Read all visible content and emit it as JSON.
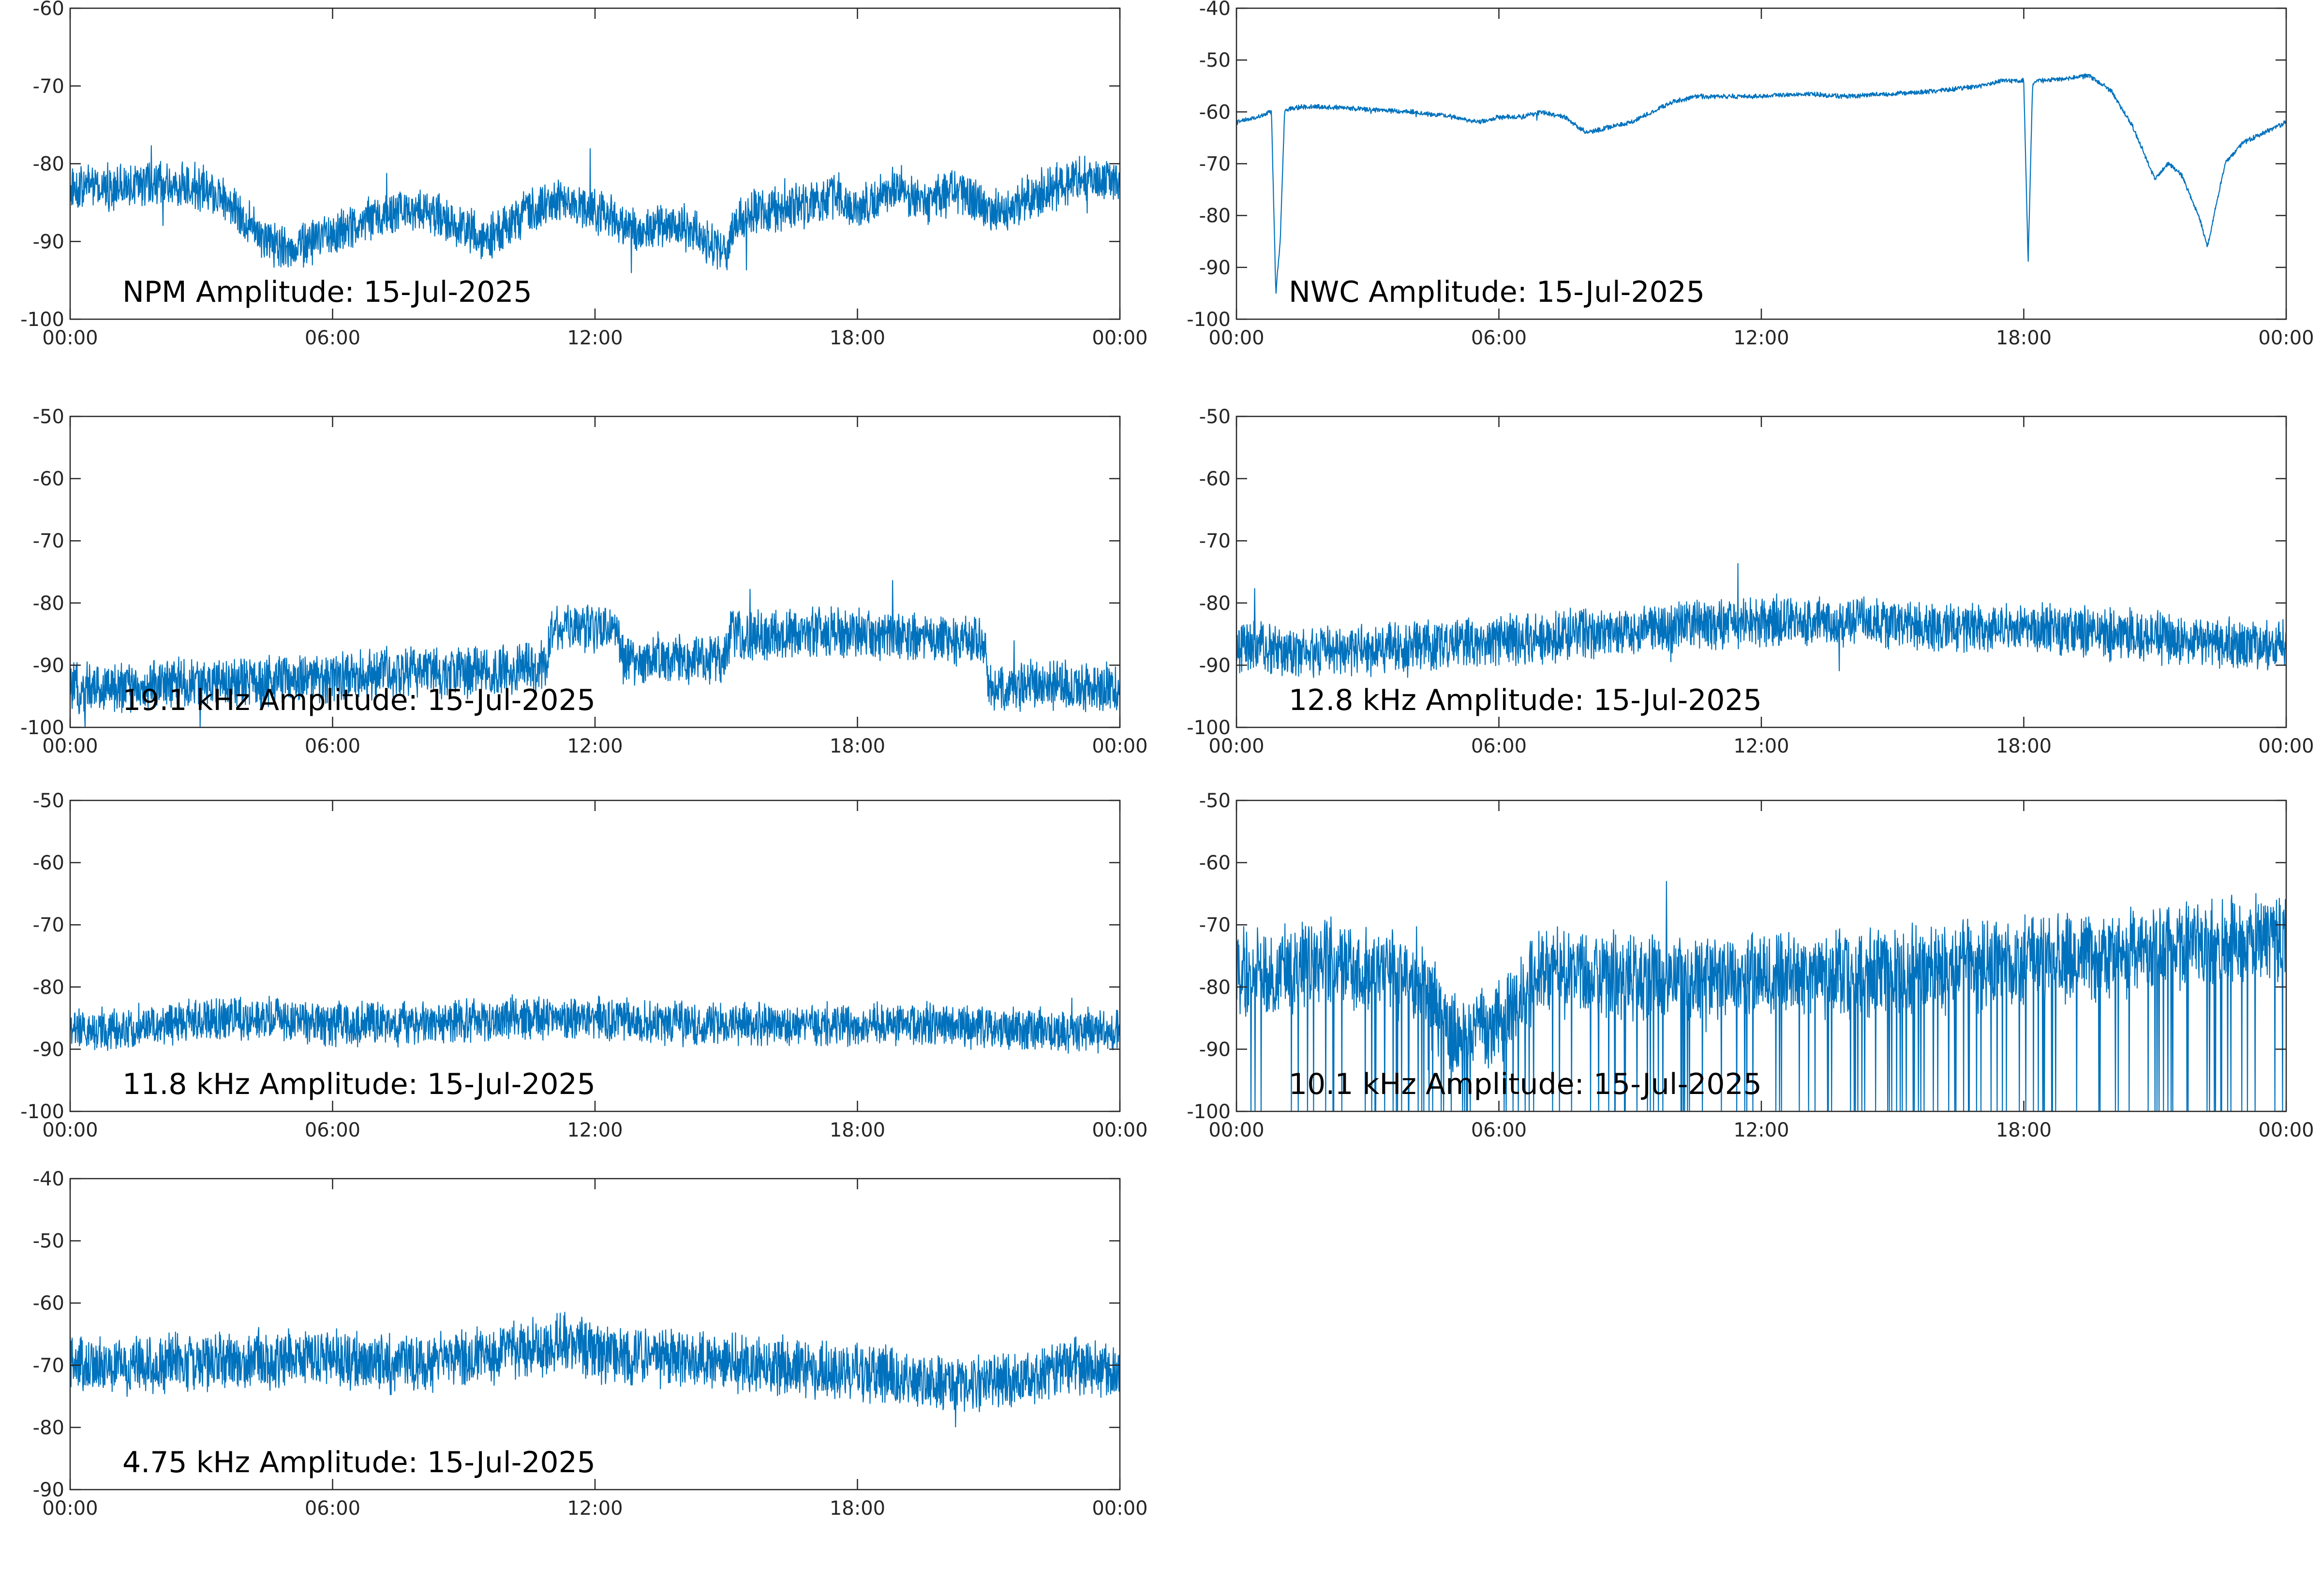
{
  "figure": {
    "line_color": "#0072BD",
    "axis_color": "#262626",
    "background": "#ffffff"
  },
  "chart_data": [
    {
      "type": "line",
      "title": "NPM Amplitude: 15-Jul-2025",
      "x_ticks": [
        "00:00",
        "06:00",
        "12:00",
        "18:00",
        "00:00"
      ],
      "xlim_hours": [
        0,
        24
      ],
      "ylim": [
        -100,
        -60
      ],
      "y_ticks": [
        -60,
        -70,
        -80,
        -90,
        -100
      ],
      "grid": false,
      "series": [
        {
          "x": [
            0,
            1,
            2,
            3,
            3.5,
            4,
            4.5,
            5,
            5.5,
            6,
            6.5,
            7,
            7.5,
            8,
            8.5,
            9,
            9.5,
            10,
            10.5,
            11,
            11.5,
            12,
            12.5,
            13,
            13.5,
            14,
            14.5,
            15,
            15.3,
            15.6,
            16,
            17,
            17.5,
            18,
            18.5,
            19,
            19.5,
            20,
            20.5,
            21,
            21.5,
            22,
            22.5,
            23,
            24
          ],
          "y": [
            -83,
            -83,
            -82.5,
            -83,
            -84,
            -87,
            -90,
            -91,
            -90,
            -89,
            -88,
            -87,
            -86,
            -86,
            -87,
            -88,
            -90,
            -88,
            -86,
            -85,
            -85,
            -86,
            -87,
            -89,
            -88,
            -88,
            -90,
            -91,
            -87,
            -86,
            -86,
            -85,
            -84,
            -86,
            -84,
            -83,
            -85,
            -84,
            -84,
            -86,
            -86,
            -84,
            -83,
            -82,
            -82
          ],
          "noise": 2.5
        }
      ]
    },
    {
      "type": "line",
      "title": "NWC Amplitude: 15-Jul-2025",
      "x_ticks": [
        "00:00",
        "06:00",
        "12:00",
        "18:00",
        "00:00"
      ],
      "xlim_hours": [
        0,
        24
      ],
      "ylim": [
        -100,
        -40
      ],
      "y_ticks": [
        -40,
        -50,
        -60,
        -70,
        -80,
        -90,
        -100
      ],
      "grid": false,
      "series": [
        {
          "x": [
            0,
            0.5,
            0.8,
            0.9,
            1.0,
            1.1,
            1.2,
            1.5,
            2,
            3,
            4,
            5,
            5.5,
            6,
            6.5,
            7,
            7.5,
            8,
            8.5,
            9,
            9.5,
            10,
            10.5,
            11,
            12,
            13,
            14,
            15,
            16,
            17,
            17.5,
            18,
            18.1,
            18.2,
            18.3,
            18.5,
            19,
            19.5,
            20,
            20.5,
            21,
            21.3,
            21.6,
            22,
            22.2,
            22.4,
            22.6,
            23,
            24
          ],
          "y": [
            -62,
            -61,
            -60,
            -95,
            -85,
            -60,
            -59.5,
            -59,
            -59,
            -59.5,
            -60,
            -61,
            -62,
            -61,
            -61,
            -60,
            -61,
            -64,
            -63,
            -62,
            -60,
            -58,
            -57,
            -57,
            -57,
            -56.5,
            -57,
            -56.5,
            -56,
            -55,
            -54,
            -54,
            -89,
            -55,
            -54,
            -54,
            -53.5,
            -53,
            -56,
            -63,
            -73,
            -70,
            -72,
            -80,
            -86,
            -78,
            -70,
            -66,
            -62
          ],
          "noise": 0.4
        }
      ]
    },
    {
      "type": "line",
      "title": "19.1 kHz Amplitude: 15-Jul-2025",
      "x_ticks": [
        "00:00",
        "06:00",
        "12:00",
        "18:00",
        "00:00"
      ],
      "xlim_hours": [
        0,
        24
      ],
      "ylim": [
        -100,
        -50
      ],
      "y_ticks": [
        -50,
        -60,
        -70,
        -80,
        -90,
        -100
      ],
      "grid": false,
      "series": [
        {
          "x": [
            0,
            2,
            4,
            6,
            8,
            10,
            10.9,
            11.0,
            12,
            12.5,
            12.6,
            14,
            15,
            15.1,
            16,
            18,
            20,
            20.9,
            21.0,
            22,
            24
          ],
          "y": [
            -94,
            -93,
            -93,
            -92,
            -91,
            -91,
            -90,
            -84,
            -84,
            -84,
            -89,
            -89,
            -89,
            -85,
            -85,
            -85,
            -86,
            -86,
            -94,
            -93,
            -94
          ],
          "noise": 3.5
        }
      ]
    },
    {
      "type": "line",
      "title": "12.8 kHz Amplitude: 15-Jul-2025",
      "x_ticks": [
        "00:00",
        "06:00",
        "12:00",
        "18:00",
        "00:00"
      ],
      "xlim_hours": [
        0,
        24
      ],
      "ylim": [
        -100,
        -50
      ],
      "y_ticks": [
        -50,
        -60,
        -70,
        -80,
        -90,
        -100
      ],
      "grid": false,
      "series": [
        {
          "x": [
            0,
            2,
            4,
            6,
            8,
            10,
            12,
            14,
            16,
            18,
            20,
            22,
            24
          ],
          "y": [
            -87,
            -88,
            -87,
            -86,
            -85,
            -84,
            -83,
            -83,
            -84,
            -84,
            -85,
            -86,
            -87
          ],
          "noise": 3.5
        }
      ]
    },
    {
      "type": "line",
      "title": "11.8 kHz Amplitude: 15-Jul-2025",
      "x_ticks": [
        "00:00",
        "06:00",
        "12:00",
        "18:00",
        "00:00"
      ],
      "xlim_hours": [
        0,
        24
      ],
      "ylim": [
        -100,
        -50
      ],
      "y_ticks": [
        -50,
        -60,
        -70,
        -80,
        -90,
        -100
      ],
      "grid": false,
      "series": [
        {
          "x": [
            0,
            2,
            4,
            6,
            8,
            10,
            12,
            14,
            16,
            18,
            20,
            22,
            24
          ],
          "y": [
            -87,
            -86,
            -85,
            -86,
            -86,
            -85,
            -85,
            -86,
            -86,
            -86,
            -86,
            -87,
            -87
          ],
          "noise": 3.0
        }
      ]
    },
    {
      "type": "line",
      "title": "10.1 kHz Amplitude: 15-Jul-2025",
      "x_ticks": [
        "00:00",
        "06:00",
        "12:00",
        "18:00",
        "00:00"
      ],
      "xlim_hours": [
        0,
        24
      ],
      "ylim": [
        -100,
        -50
      ],
      "y_ticks": [
        -50,
        -60,
        -70,
        -80,
        -90,
        -100
      ],
      "grid": false,
      "series": [
        {
          "x": [
            0,
            2,
            4,
            5,
            6,
            7,
            8,
            10,
            12,
            14,
            16,
            18,
            20,
            22,
            24
          ],
          "y": [
            -78,
            -76,
            -78,
            -88,
            -86,
            -77,
            -78,
            -79,
            -78,
            -78,
            -77,
            -76,
            -75,
            -73,
            -72
          ],
          "noise": 6.0,
          "dropouts": true
        }
      ]
    },
    {
      "type": "line",
      "title": "4.75 kHz Amplitude: 15-Jul-2025",
      "x_ticks": [
        "00:00",
        "06:00",
        "12:00",
        "18:00",
        "00:00"
      ],
      "xlim_hours": [
        0,
        24
      ],
      "ylim": [
        -90,
        -40
      ],
      "y_ticks": [
        -40,
        -50,
        -60,
        -70,
        -80,
        -90
      ],
      "grid": false,
      "series": [
        {
          "x": [
            0,
            2,
            4,
            6,
            8,
            10,
            11.5,
            12,
            14,
            16,
            18,
            20,
            21,
            22,
            23,
            24
          ],
          "y": [
            -70,
            -70,
            -69,
            -69,
            -70,
            -68,
            -66,
            -68,
            -69,
            -70,
            -71,
            -73,
            -73,
            -72,
            -70,
            -71
          ],
          "noise": 4.0
        }
      ]
    }
  ]
}
